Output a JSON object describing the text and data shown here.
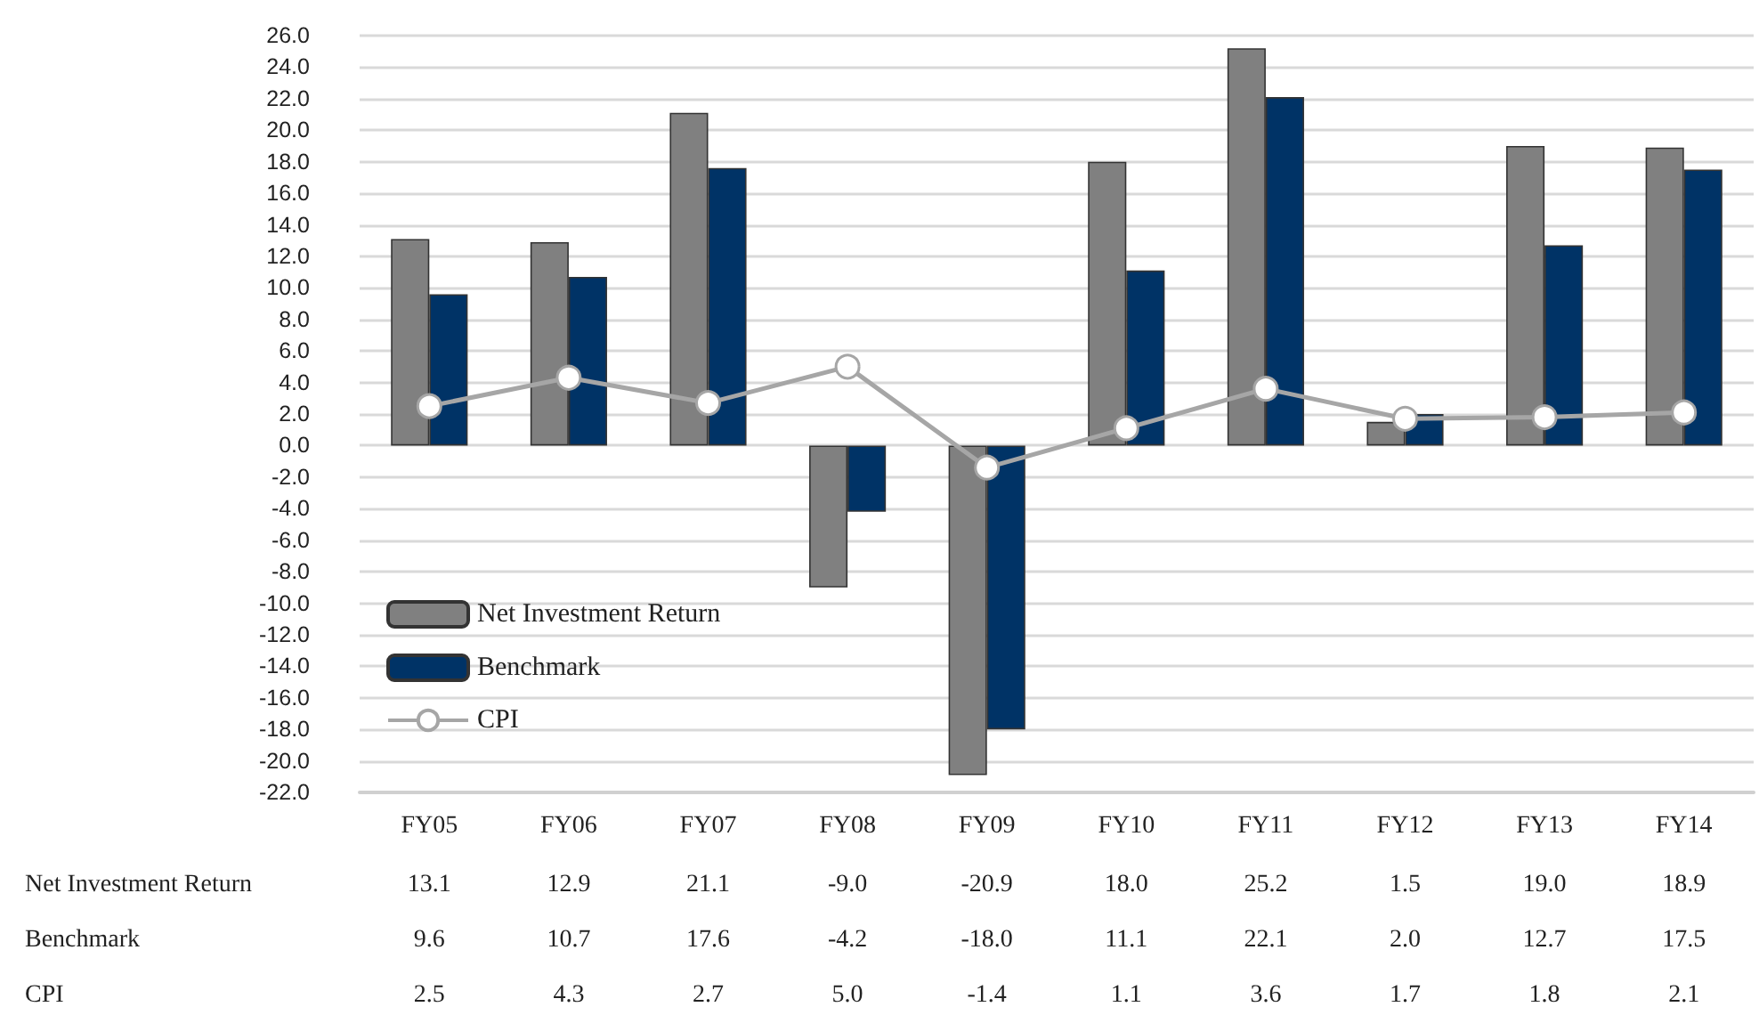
{
  "chart_data": {
    "type": "bar",
    "categories": [
      "FY05",
      "FY06",
      "FY07",
      "FY08",
      "FY09",
      "FY10",
      "FY11",
      "FY12",
      "FY13",
      "FY14"
    ],
    "series": [
      {
        "name": "Net Investment Return",
        "color": "#808080",
        "values": [
          13.1,
          12.9,
          21.1,
          -9.0,
          -20.9,
          18.0,
          25.2,
          1.5,
          19.0,
          18.9
        ],
        "value_labels": [
          "13.1",
          "12.9",
          "21.1",
          "-9.0",
          "-20.9",
          "18.0",
          "25.2",
          "1.5",
          "19.0",
          "18.9"
        ]
      },
      {
        "name": "Benchmark",
        "color": "#003366",
        "values": [
          9.6,
          10.7,
          17.6,
          -4.2,
          -18.0,
          11.1,
          22.1,
          2.0,
          12.7,
          17.5
        ],
        "value_labels": [
          "9.6",
          "10.7",
          "17.6",
          "-4.2",
          "-18.0",
          "11.1",
          "22.1",
          "2.0",
          "12.7",
          "17.5"
        ]
      },
      {
        "name": "CPI",
        "type": "line",
        "color": "#a6a6a6",
        "marker": "circle",
        "values": [
          2.5,
          4.3,
          2.7,
          5.0,
          -1.4,
          1.1,
          3.6,
          1.7,
          1.8,
          2.1
        ],
        "value_labels": [
          "2.5",
          "4.3",
          "2.7",
          "5.0",
          "-1.4",
          "1.1",
          "3.6",
          "1.7",
          "1.8",
          "2.1"
        ]
      }
    ],
    "ylim": [
      -22,
      26
    ],
    "yticks": [
      {
        "value": -22,
        "label": "-22.0"
      },
      {
        "value": -20,
        "label": "-20.0"
      },
      {
        "value": -18,
        "label": "-18.0"
      },
      {
        "value": -16,
        "label": "-16.0"
      },
      {
        "value": -14,
        "label": "-14.0"
      },
      {
        "value": -12,
        "label": "-12.0"
      },
      {
        "value": -10,
        "label": "-10.0"
      },
      {
        "value": -8,
        "label": "-8.0"
      },
      {
        "value": -6,
        "label": "-6.0"
      },
      {
        "value": -4,
        "label": "-4.0"
      },
      {
        "value": -2,
        "label": "-2.0"
      },
      {
        "value": 0,
        "label": "0.0"
      },
      {
        "value": 2,
        "label": "2.0"
      },
      {
        "value": 4,
        "label": "4.0"
      },
      {
        "value": 6,
        "label": "6.0"
      },
      {
        "value": 8,
        "label": "8.0"
      },
      {
        "value": 10,
        "label": "10.0"
      },
      {
        "value": 12,
        "label": "12.0"
      },
      {
        "value": 14,
        "label": "14.0"
      },
      {
        "value": 16,
        "label": "16.0"
      },
      {
        "value": 18,
        "label": "18.0"
      },
      {
        "value": 20,
        "label": "20.0"
      },
      {
        "value": 22,
        "label": "22.0"
      },
      {
        "value": 24,
        "label": "24.0"
      },
      {
        "value": 26,
        "label": "26.0"
      }
    ],
    "grid": "y",
    "legend": "bottom left"
  }
}
